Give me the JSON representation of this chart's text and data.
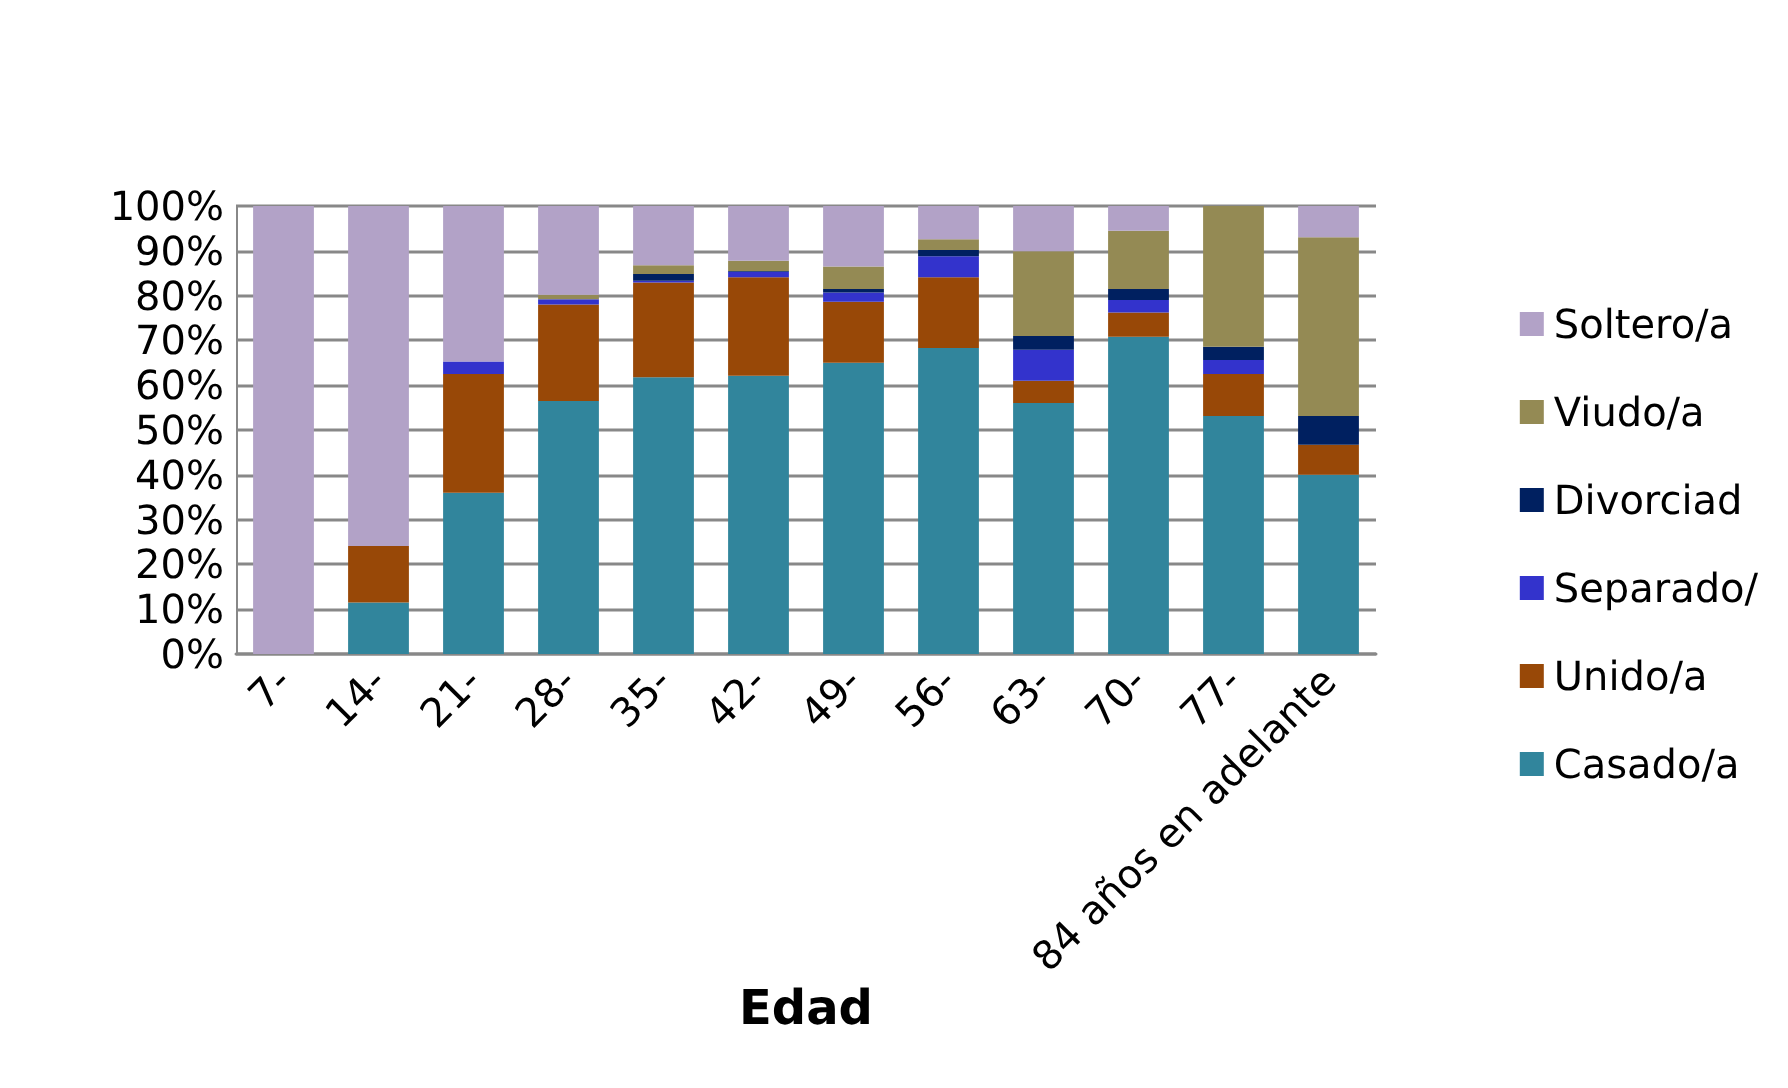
{
  "chart_data": {
    "type": "bar",
    "stacked": true,
    "xlabel": "Edad",
    "categories": [
      "7-",
      "14-",
      "21-",
      "28-",
      "35-",
      "42-",
      "49-",
      "56-",
      "63-",
      "70-",
      "77-",
      "84 años en adelante"
    ],
    "series": [
      {
        "name": "Casado/a",
        "color": "#31859c",
        "values": [
          0,
          11.5,
          36.0,
          56.5,
          61.8,
          62.1,
          65.0,
          68.3,
          56.0,
          70.8,
          53.1,
          40.0
        ]
      },
      {
        "name": "Unido/a",
        "color": "#984807",
        "values": [
          0,
          12.6,
          26.5,
          21.5,
          21.1,
          22.0,
          13.6,
          15.8,
          5.0,
          5.4,
          9.4,
          6.7
        ]
      },
      {
        "name": "Separado/",
        "color": "#3333cc",
        "values": [
          0,
          0,
          2.8,
          1.2,
          0.4,
          1.2,
          2.1,
          4.7,
          6.9,
          2.8,
          3.1,
          0
        ]
      },
      {
        "name": "Divorciad",
        "color": "#002060",
        "values": [
          0,
          0,
          0,
          0,
          1.5,
          0.2,
          0.8,
          1.4,
          3.1,
          2.5,
          3.0,
          6.4
        ]
      },
      {
        "name": "Viudo/a",
        "color": "#948a54",
        "values": [
          0,
          0,
          0,
          1.0,
          2.0,
          2.3,
          5.0,
          2.4,
          18.9,
          13.0,
          31.4,
          39.9
        ]
      },
      {
        "name": "Soltero/a",
        "color": "#b2a2c7",
        "values": [
          100,
          75.9,
          34.7,
          19.8,
          13.2,
          12.2,
          13.5,
          7.4,
          10.1,
          5.5,
          0,
          7.0
        ]
      }
    ],
    "ylim": [
      0,
      100
    ],
    "yticks": [
      {
        "value": 0,
        "label": "0%"
      },
      {
        "value": 10,
        "label": "10%"
      },
      {
        "value": 20,
        "label": "20%"
      },
      {
        "value": 30,
        "label": "30%"
      },
      {
        "value": 40,
        "label": "40%"
      },
      {
        "value": 50,
        "label": "50%"
      },
      {
        "value": 60,
        "label": "60%"
      },
      {
        "value": 70,
        "label": "70%"
      },
      {
        "value": 80,
        "label": "80%"
      },
      {
        "value": 90,
        "label": "90%"
      },
      {
        "value": 100,
        "label": "100%"
      }
    ],
    "grid": "y",
    "legend": "right"
  }
}
